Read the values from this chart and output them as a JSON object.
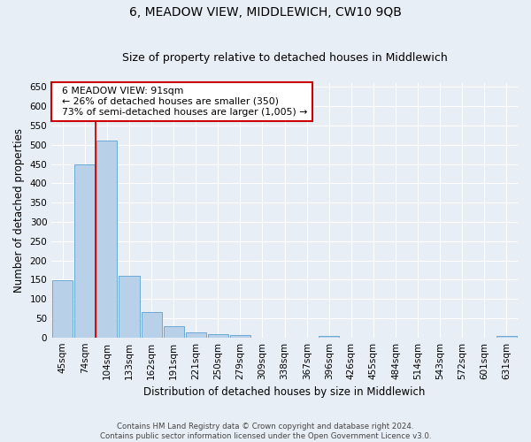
{
  "title": "6, MEADOW VIEW, MIDDLEWICH, CW10 9QB",
  "subtitle": "Size of property relative to detached houses in Middlewich",
  "xlabel": "Distribution of detached houses by size in Middlewich",
  "ylabel": "Number of detached properties",
  "footer_line1": "Contains HM Land Registry data © Crown copyright and database right 2024.",
  "footer_line2": "Contains public sector information licensed under the Open Government Licence v3.0.",
  "categories": [
    "45sqm",
    "74sqm",
    "104sqm",
    "133sqm",
    "162sqm",
    "191sqm",
    "221sqm",
    "250sqm",
    "279sqm",
    "309sqm",
    "338sqm",
    "367sqm",
    "396sqm",
    "426sqm",
    "455sqm",
    "484sqm",
    "514sqm",
    "543sqm",
    "572sqm",
    "601sqm",
    "631sqm"
  ],
  "values": [
    148,
    450,
    510,
    160,
    65,
    30,
    13,
    8,
    6,
    0,
    0,
    0,
    5,
    0,
    0,
    0,
    0,
    0,
    0,
    0,
    5
  ],
  "bar_color": "#b8d0e8",
  "bar_edge_color": "#6aaad4",
  "bar_edge_width": 0.7,
  "property_line_x": 1.5,
  "property_line_color": "#cc0000",
  "annotation_box_text": "  6 MEADOW VIEW: 91sqm\n  ← 26% of detached houses are smaller (350)\n  73% of semi-detached houses are larger (1,005) →",
  "annotation_fontsize": 7.8,
  "annotation_box_color": "#cc0000",
  "ylim": [
    0,
    660
  ],
  "yticks": [
    0,
    50,
    100,
    150,
    200,
    250,
    300,
    350,
    400,
    450,
    500,
    550,
    600,
    650
  ],
  "fig_bg_color": "#e8eef5",
  "plot_bg_color": "#e8eef5",
  "grid_color": "#ffffff",
  "title_fontsize": 10,
  "subtitle_fontsize": 9,
  "xlabel_fontsize": 8.5,
  "ylabel_fontsize": 8.5,
  "tick_fontsize": 7.5
}
